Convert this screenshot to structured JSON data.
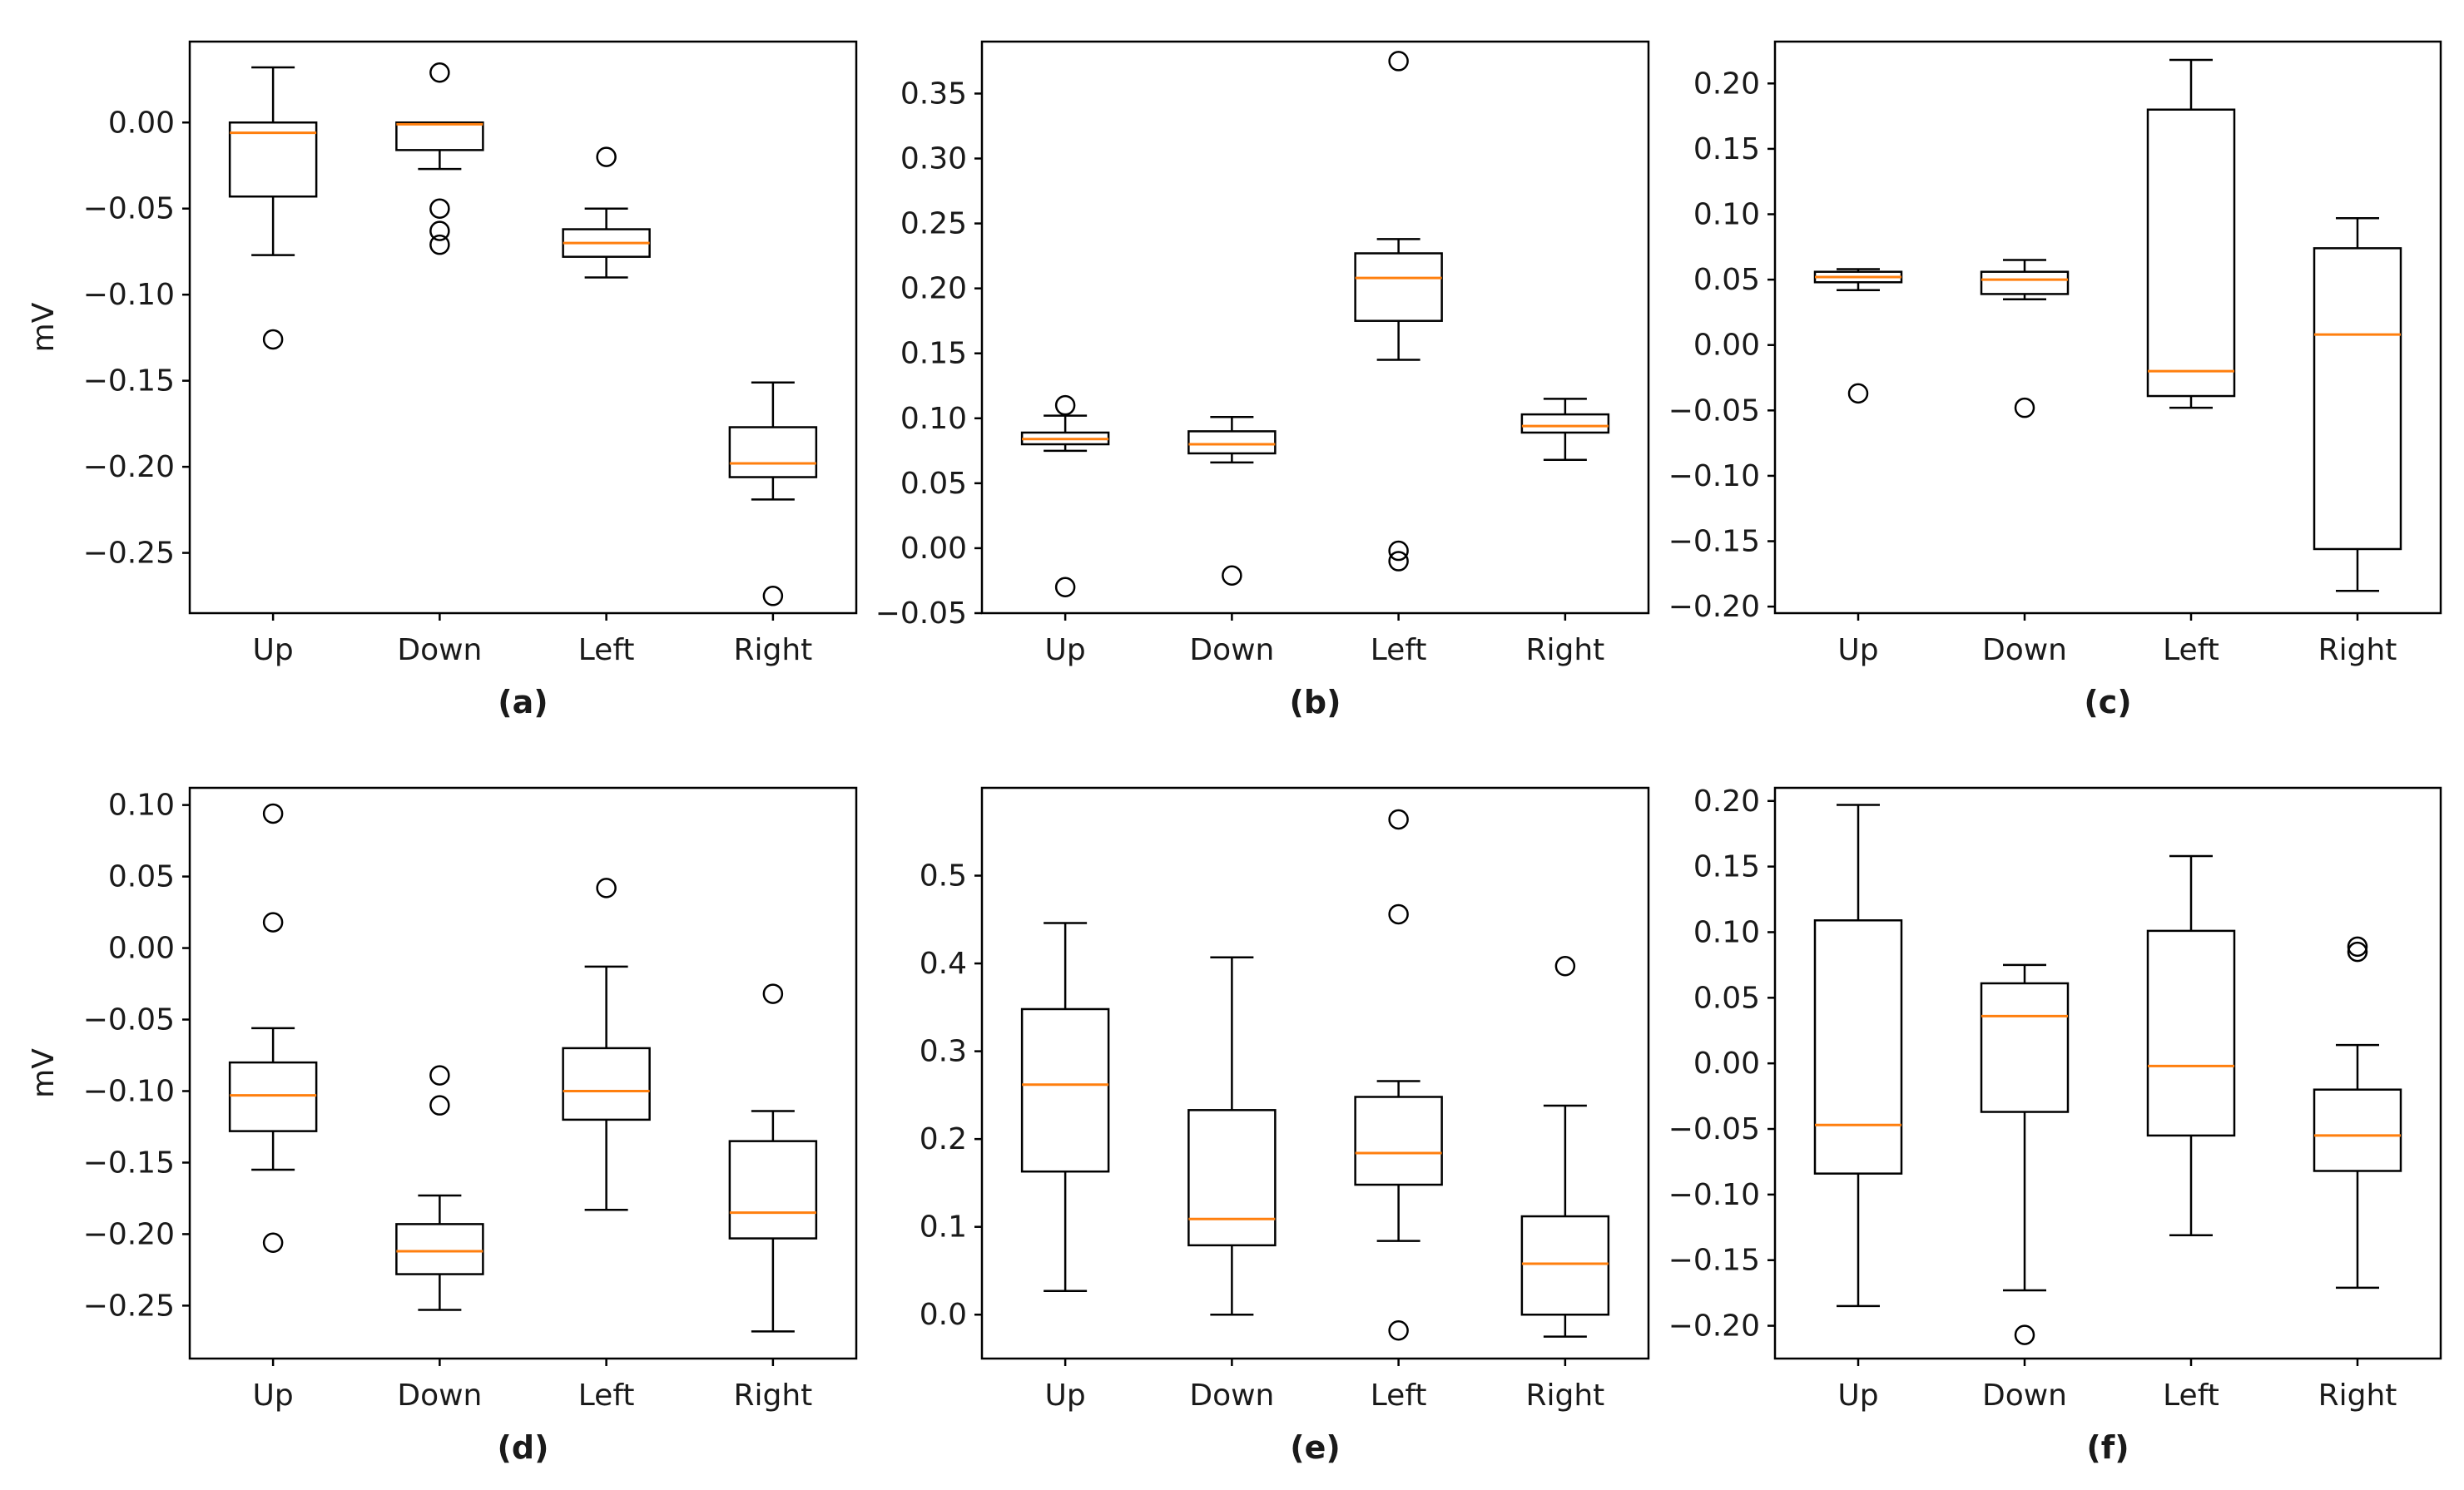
{
  "colors": {
    "box": "#000000",
    "median": "#ff7f0e",
    "background": "#ffffff"
  },
  "chart_data": [
    {
      "type": "box",
      "panel_label": "(a)",
      "ylabel": "mV",
      "categories": [
        "Up",
        "Down",
        "Left",
        "Right"
      ],
      "ylim": [
        -0.285,
        0.047
      ],
      "yticks": [
        {
          "value": 0.0,
          "label": "0.00"
        },
        {
          "value": -0.05,
          "label": "−0.05"
        },
        {
          "value": -0.1,
          "label": "−0.10"
        },
        {
          "value": -0.15,
          "label": "−0.15"
        },
        {
          "value": -0.2,
          "label": "−0.20"
        },
        {
          "value": -0.25,
          "label": "−0.25"
        }
      ],
      "boxes": [
        {
          "whisker_low": -0.077,
          "q1": -0.043,
          "median": -0.006,
          "q3": 0.0,
          "whisker_high": 0.032,
          "outliers": [
            -0.126
          ]
        },
        {
          "whisker_low": -0.027,
          "q1": -0.016,
          "median": -0.001,
          "q3": 0.0,
          "whisker_high": 0.0,
          "outliers": [
            0.029,
            -0.05,
            -0.063,
            -0.071
          ]
        },
        {
          "whisker_low": -0.09,
          "q1": -0.078,
          "median": -0.07,
          "q3": -0.062,
          "whisker_high": -0.05,
          "outliers": [
            -0.02
          ]
        },
        {
          "whisker_low": -0.219,
          "q1": -0.206,
          "median": -0.198,
          "q3": -0.177,
          "whisker_high": -0.151,
          "outliers": [
            -0.275
          ]
        }
      ]
    },
    {
      "type": "box",
      "panel_label": "(b)",
      "ylabel": "",
      "categories": [
        "Up",
        "Down",
        "Left",
        "Right"
      ],
      "ylim": [
        -0.05,
        0.39
      ],
      "yticks": [
        {
          "value": 0.35,
          "label": "0.35"
        },
        {
          "value": 0.3,
          "label": "0.30"
        },
        {
          "value": 0.25,
          "label": "0.25"
        },
        {
          "value": 0.2,
          "label": "0.20"
        },
        {
          "value": 0.15,
          "label": "0.15"
        },
        {
          "value": 0.1,
          "label": "0.10"
        },
        {
          "value": 0.05,
          "label": "0.05"
        },
        {
          "value": 0.0,
          "label": "0.00"
        },
        {
          "value": -0.05,
          "label": "−0.05"
        }
      ],
      "boxes": [
        {
          "whisker_low": 0.075,
          "q1": 0.08,
          "median": 0.084,
          "q3": 0.089,
          "whisker_high": 0.102,
          "outliers": [
            0.11,
            -0.03
          ]
        },
        {
          "whisker_low": 0.066,
          "q1": 0.073,
          "median": 0.08,
          "q3": 0.09,
          "whisker_high": 0.101,
          "outliers": [
            -0.021
          ]
        },
        {
          "whisker_low": 0.145,
          "q1": 0.175,
          "median": 0.208,
          "q3": 0.227,
          "whisker_high": 0.238,
          "outliers": [
            0.375,
            -0.002,
            -0.01
          ]
        },
        {
          "whisker_low": 0.068,
          "q1": 0.089,
          "median": 0.094,
          "q3": 0.103,
          "whisker_high": 0.115,
          "outliers": []
        }
      ]
    },
    {
      "type": "box",
      "panel_label": "(c)",
      "ylabel": "",
      "categories": [
        "Up",
        "Down",
        "Left",
        "Right"
      ],
      "ylim": [
        -0.205,
        0.232
      ],
      "yticks": [
        {
          "value": 0.2,
          "label": "0.20"
        },
        {
          "value": 0.15,
          "label": "0.15"
        },
        {
          "value": 0.1,
          "label": "0.10"
        },
        {
          "value": 0.05,
          "label": "0.05"
        },
        {
          "value": 0.0,
          "label": "0.00"
        },
        {
          "value": -0.05,
          "label": "−0.05"
        },
        {
          "value": -0.1,
          "label": "−0.10"
        },
        {
          "value": -0.15,
          "label": "−0.15"
        },
        {
          "value": -0.2,
          "label": "−0.20"
        }
      ],
      "boxes": [
        {
          "whisker_low": 0.042,
          "q1": 0.048,
          "median": 0.052,
          "q3": 0.056,
          "whisker_high": 0.058,
          "outliers": [
            -0.037
          ]
        },
        {
          "whisker_low": 0.035,
          "q1": 0.039,
          "median": 0.05,
          "q3": 0.056,
          "whisker_high": 0.065,
          "outliers": [
            -0.048
          ]
        },
        {
          "whisker_low": -0.048,
          "q1": -0.039,
          "median": -0.02,
          "q3": 0.18,
          "whisker_high": 0.218,
          "outliers": []
        },
        {
          "whisker_low": -0.188,
          "q1": -0.156,
          "median": 0.008,
          "q3": 0.074,
          "whisker_high": 0.097,
          "outliers": []
        }
      ]
    },
    {
      "type": "box",
      "panel_label": "(d)",
      "ylabel": "mV",
      "categories": [
        "Up",
        "Down",
        "Left",
        "Right"
      ],
      "ylim": [
        -0.287,
        0.112
      ],
      "yticks": [
        {
          "value": 0.1,
          "label": "0.10"
        },
        {
          "value": 0.05,
          "label": "0.05"
        },
        {
          "value": 0.0,
          "label": "0.00"
        },
        {
          "value": -0.05,
          "label": "−0.05"
        },
        {
          "value": -0.1,
          "label": "−0.10"
        },
        {
          "value": -0.15,
          "label": "−0.15"
        },
        {
          "value": -0.2,
          "label": "−0.20"
        },
        {
          "value": -0.25,
          "label": "−0.25"
        }
      ],
      "boxes": [
        {
          "whisker_low": -0.155,
          "q1": -0.128,
          "median": -0.103,
          "q3": -0.08,
          "whisker_high": -0.056,
          "outliers": [
            0.094,
            0.018,
            -0.206
          ]
        },
        {
          "whisker_low": -0.253,
          "q1": -0.228,
          "median": -0.212,
          "q3": -0.193,
          "whisker_high": -0.173,
          "outliers": [
            -0.089,
            -0.11
          ]
        },
        {
          "whisker_low": -0.183,
          "q1": -0.12,
          "median": -0.1,
          "q3": -0.07,
          "whisker_high": -0.013,
          "outliers": [
            0.042
          ]
        },
        {
          "whisker_low": -0.268,
          "q1": -0.203,
          "median": -0.185,
          "q3": -0.135,
          "whisker_high": -0.114,
          "outliers": [
            -0.032
          ]
        }
      ]
    },
    {
      "type": "box",
      "panel_label": "(e)",
      "ylabel": "",
      "categories": [
        "Up",
        "Down",
        "Left",
        "Right"
      ],
      "ylim": [
        -0.05,
        0.6
      ],
      "yticks": [
        {
          "value": 0.5,
          "label": "0.5"
        },
        {
          "value": 0.4,
          "label": "0.4"
        },
        {
          "value": 0.3,
          "label": "0.3"
        },
        {
          "value": 0.2,
          "label": "0.2"
        },
        {
          "value": 0.1,
          "label": "0.1"
        },
        {
          "value": 0.0,
          "label": "0.0"
        }
      ],
      "boxes": [
        {
          "whisker_low": 0.027,
          "q1": 0.163,
          "median": 0.262,
          "q3": 0.348,
          "whisker_high": 0.446,
          "outliers": []
        },
        {
          "whisker_low": 0.0,
          "q1": 0.079,
          "median": 0.109,
          "q3": 0.233,
          "whisker_high": 0.407,
          "outliers": []
        },
        {
          "whisker_low": 0.084,
          "q1": 0.148,
          "median": 0.184,
          "q3": 0.248,
          "whisker_high": 0.266,
          "outliers": [
            0.564,
            0.456,
            -0.018
          ]
        },
        {
          "whisker_low": -0.025,
          "q1": 0.0,
          "median": 0.058,
          "q3": 0.112,
          "whisker_high": 0.238,
          "outliers": [
            0.397
          ]
        }
      ]
    },
    {
      "type": "box",
      "panel_label": "(f)",
      "ylabel": "",
      "categories": [
        "Up",
        "Down",
        "Left",
        "Right"
      ],
      "ylim": [
        -0.225,
        0.21
      ],
      "yticks": [
        {
          "value": 0.2,
          "label": "0.20"
        },
        {
          "value": 0.15,
          "label": "0.15"
        },
        {
          "value": 0.1,
          "label": "0.10"
        },
        {
          "value": 0.05,
          "label": "0.05"
        },
        {
          "value": 0.0,
          "label": "0.00"
        },
        {
          "value": -0.05,
          "label": "−0.05"
        },
        {
          "value": -0.1,
          "label": "−0.10"
        },
        {
          "value": -0.15,
          "label": "−0.15"
        },
        {
          "value": -0.2,
          "label": "−0.20"
        }
      ],
      "boxes": [
        {
          "whisker_low": -0.185,
          "q1": -0.084,
          "median": -0.047,
          "q3": 0.109,
          "whisker_high": 0.197,
          "outliers": []
        },
        {
          "whisker_low": -0.173,
          "q1": -0.037,
          "median": 0.036,
          "q3": 0.061,
          "whisker_high": 0.075,
          "outliers": [
            -0.207
          ]
        },
        {
          "whisker_low": -0.131,
          "q1": -0.055,
          "median": -0.002,
          "q3": 0.101,
          "whisker_high": 0.158,
          "outliers": []
        },
        {
          "whisker_low": -0.171,
          "q1": -0.082,
          "median": -0.055,
          "q3": -0.02,
          "whisker_high": 0.014,
          "outliers": [
            0.089,
            0.085
          ]
        }
      ]
    }
  ]
}
